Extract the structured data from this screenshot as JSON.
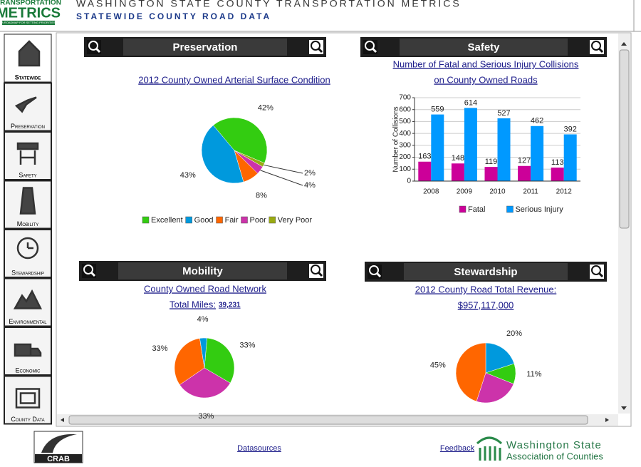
{
  "header": {
    "logo_top": "TRANSPORTATION",
    "logo_main": "METRICS",
    "logo_tagline": "A ROADMAP FOR SETTING PRIORITIES",
    "title": "WASHINGTON STATE COUNTY TRANSPORTATION METRICS",
    "subtitle": "STATEWIDE COUNTY ROAD DATA"
  },
  "nav": [
    "Statewide",
    "Preservation",
    "Safety",
    "Mobility",
    "Stewardship",
    "Environmental",
    "Economic",
    "County Data"
  ],
  "panels": [
    "Preservation",
    "Safety",
    "Mobility",
    "Stewardship"
  ],
  "chart_data": [
    {
      "type": "pie",
      "title": [
        "2012 County Owned Arterial Surface Condition"
      ],
      "categories": [
        "Excellent",
        "Good",
        "Fair",
        "Poor",
        "Very Poor"
      ],
      "values": [
        42,
        43,
        8,
        4,
        2
      ],
      "value_labels": [
        "42%",
        "43%",
        "8%",
        "4%",
        "2%"
      ],
      "colors": [
        "#33cc11",
        "#0099dd",
        "#ff6600",
        "#cc33aa",
        "#99aa11"
      ],
      "legend": "bottom"
    },
    {
      "type": "bar",
      "title": [
        "Number of Fatal and Serious Injury Collisions",
        "on County Owned Roads"
      ],
      "categories": [
        "2008",
        "2009",
        "2010",
        "2011",
        "2012"
      ],
      "series": [
        {
          "name": "Fatal",
          "color": "#cc0099",
          "values": [
            163,
            148,
            119,
            127,
            113
          ]
        },
        {
          "name": "Serious Injury",
          "color": "#0099ff",
          "values": [
            559,
            614,
            527,
            462,
            392
          ]
        }
      ],
      "ylabel": "Number of Collisions",
      "ylim": [
        0,
        700
      ],
      "yticks": [
        0,
        100,
        200,
        300,
        400,
        500,
        600,
        700
      ],
      "grid": true,
      "legend": "bottom"
    },
    {
      "type": "pie",
      "title": [
        "County Owned Road Network",
        "Total Miles:"
      ],
      "total": "39,231",
      "values": [
        33,
        33,
        33,
        4
      ],
      "value_labels": [
        "33%",
        "33%",
        "33%",
        "4%"
      ],
      "colors": [
        "#33cc11",
        "#cc33aa",
        "#ff6600",
        "#0099dd"
      ]
    },
    {
      "type": "pie",
      "title": [
        "2012 County Road Total Revenue:",
        "$957,117,000"
      ],
      "values": [
        20,
        11,
        24,
        45
      ],
      "value_labels": [
        "20%",
        "11%",
        null,
        "45%"
      ],
      "colors": [
        "#0099dd",
        "#33cc11",
        "#cc33aa",
        "#ff6600"
      ]
    }
  ],
  "footer": {
    "datasources": "Datasources",
    "feedback": "Feedback",
    "org_line1": "Washington State",
    "org_line2": "Association of Counties",
    "crab": "CRAB"
  }
}
